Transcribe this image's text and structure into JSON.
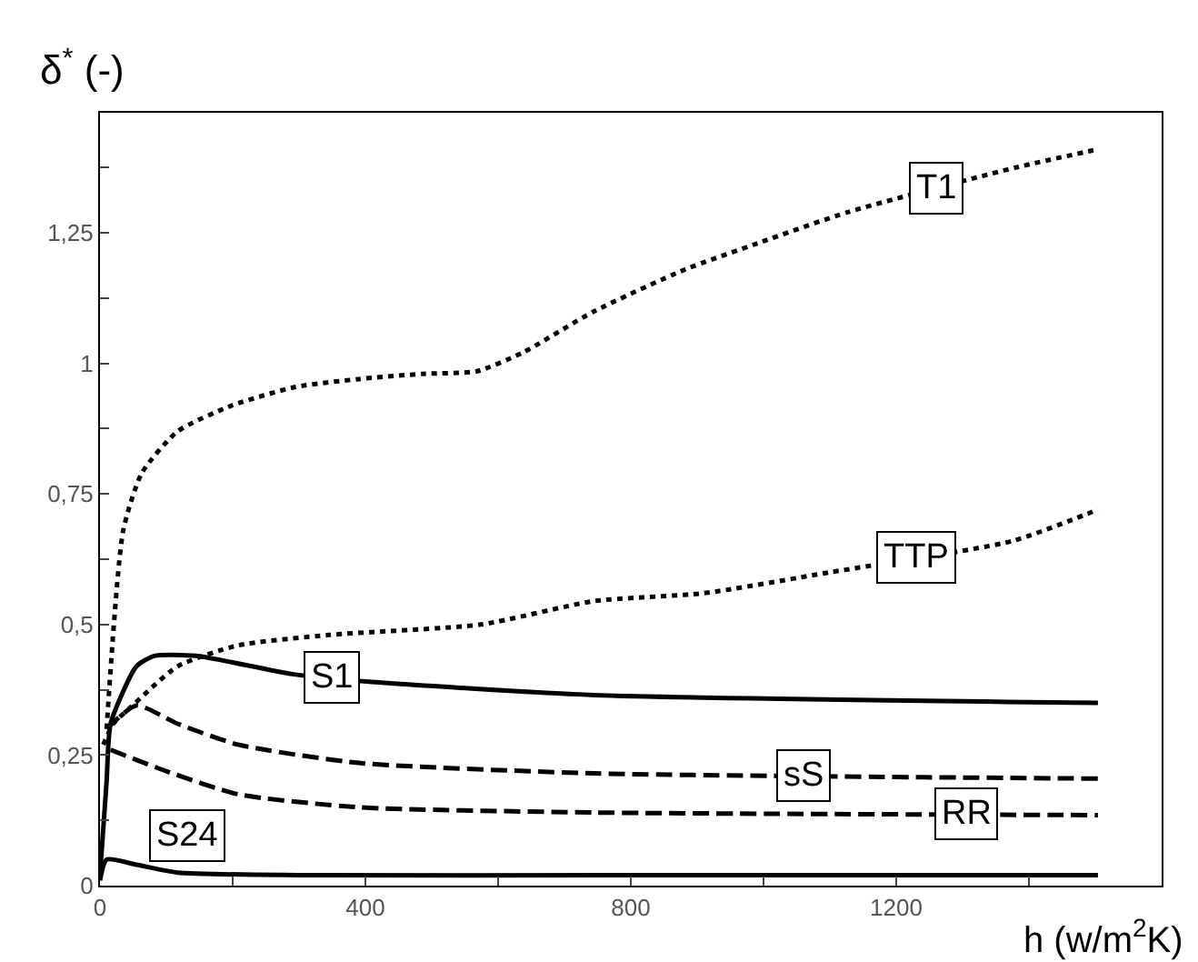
{
  "chart_data": {
    "type": "line",
    "xlabel": "h (w/m$^{2}$K)",
    "ylabel": "δ$^{*}$ (-)",
    "xlim": [
      0,
      1600
    ],
    "xticks": [
      0,
      {
        "value": 200,
        "label": null
      },
      400,
      {
        "value": 600,
        "label": null
      },
      800,
      {
        "value": 1000,
        "label": null
      },
      1200,
      {
        "value": 1400,
        "label": null
      }
    ],
    "ylim": [
      0,
      1.48
    ],
    "yticks": [
      0,
      {
        "value": 0.125,
        "label": null
      },
      {
        "value": 0.25,
        "label": "0,25"
      },
      {
        "value": 0.375,
        "label": null
      },
      {
        "value": 0.5,
        "label": "0,5"
      },
      {
        "value": 0.625,
        "label": null
      },
      {
        "value": 0.75,
        "label": "0,75"
      },
      {
        "value": 0.875,
        "label": null
      },
      1,
      {
        "value": 1.125,
        "label": null
      },
      {
        "value": 1.25,
        "label": "1,25"
      },
      {
        "value": 1.375,
        "label": null
      }
    ],
    "grid": false,
    "legend": false,
    "marker": "none",
    "series": [
      {
        "name": "T1",
        "color": "#000000",
        "line_style": "dotted",
        "x": [
          10,
          35,
          63,
          117,
          200,
          295,
          390,
          486,
          568,
          636,
          745,
          882,
          991,
          1128,
          1380,
          1504
        ],
        "values": [
          0.3,
          0.68,
          0.79,
          0.87,
          0.92,
          0.955,
          0.97,
          0.98,
          0.985,
          1.02,
          1.1,
          1.18,
          1.23,
          1.29,
          1.375,
          1.41
        ]
      },
      {
        "name": "TTP",
        "color": "#000000",
        "line_style": "dotted",
        "x": [
          5,
          20,
          45,
          117,
          208,
          345,
          574,
          745,
          910,
          1100,
          1375,
          1504
        ],
        "values": [
          0.27,
          0.31,
          0.34,
          0.42,
          0.46,
          0.48,
          0.5,
          0.545,
          0.56,
          0.6,
          0.66,
          0.72
        ]
      },
      {
        "name": "S1",
        "color": "#000000",
        "line_style": "solid",
        "x": [
          0,
          10,
          16,
          55,
          82,
          145,
          290,
          410,
          745,
          1504
        ],
        "values": [
          0.02,
          0.2,
          0.31,
          0.42,
          0.44,
          0.44,
          0.405,
          0.39,
          0.365,
          0.35
        ]
      },
      {
        "name": "sS",
        "color": "#000000",
        "line_style": "dashed",
        "x": [
          10,
          55,
          117,
          208,
          390,
          745,
          1504
        ],
        "values": [
          0.3,
          0.345,
          0.31,
          0.27,
          0.235,
          0.215,
          0.205
        ]
      },
      {
        "name": "RR",
        "color": "#000000",
        "line_style": "dashed",
        "x": [
          16,
          98,
          208,
          390,
          745,
          1504
        ],
        "values": [
          0.26,
          0.22,
          0.175,
          0.15,
          0.14,
          0.135
        ]
      },
      {
        "name": "S24",
        "color": "#000000",
        "line_style": "solid",
        "x": [
          0,
          10,
          55,
          117,
          300,
          800,
          1504
        ],
        "values": [
          0.01,
          0.05,
          0.04,
          0.025,
          0.02,
          0.02,
          0.02
        ]
      }
    ]
  }
}
